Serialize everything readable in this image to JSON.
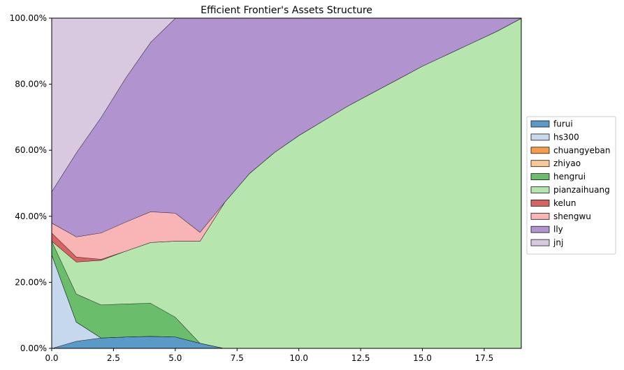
{
  "chart_data": {
    "type": "area",
    "title": "Efficient Frontier's Assets Structure",
    "xlabel": "",
    "ylabel": "",
    "xlim": [
      0,
      19
    ],
    "ylim": [
      0,
      1
    ],
    "grid": true,
    "legend_position": "right",
    "x_ticks": [
      0.0,
      2.5,
      5.0,
      7.5,
      10.0,
      12.5,
      15.0,
      17.5
    ],
    "x_tick_labels": [
      "0.0",
      "2.5",
      "5.0",
      "7.5",
      "10.0",
      "12.5",
      "15.0",
      "17.5"
    ],
    "y_ticks": [
      0,
      0.2,
      0.4,
      0.6,
      0.8,
      1.0
    ],
    "y_tick_labels": [
      "0.00%",
      "20.00%",
      "40.00%",
      "60.00%",
      "80.00%",
      "100.00%"
    ],
    "x": [
      0,
      1,
      2,
      3,
      4,
      5,
      6,
      7,
      8,
      9,
      10,
      11,
      12,
      13,
      14,
      15,
      16,
      17,
      18,
      19
    ],
    "series": [
      {
        "name": "furui",
        "color": "#5b9ac8",
        "values": [
          0.0,
          0.022,
          0.032,
          0.035,
          0.037,
          0.035,
          0.016,
          0.0,
          0.0,
          0.0,
          0.0,
          0.0,
          0.0,
          0.0,
          0.0,
          0.0,
          0.0,
          0.0,
          0.0,
          0.0
        ]
      },
      {
        "name": "hs300",
        "color": "#c5d8ee",
        "values": [
          0.285,
          0.058,
          0.0,
          0.0,
          0.0,
          0.0,
          0.0,
          0.0,
          0.0,
          0.0,
          0.0,
          0.0,
          0.0,
          0.0,
          0.0,
          0.0,
          0.0,
          0.0,
          0.0,
          0.0
        ]
      },
      {
        "name": "chuangyeban",
        "color": "#f89c4b",
        "values": [
          0,
          0,
          0,
          0,
          0,
          0,
          0,
          0,
          0,
          0,
          0,
          0,
          0,
          0,
          0,
          0,
          0,
          0,
          0,
          0
        ]
      },
      {
        "name": "zhiyao",
        "color": "#f9c897",
        "values": [
          0,
          0,
          0,
          0,
          0,
          0,
          0,
          0,
          0,
          0,
          0,
          0,
          0,
          0,
          0,
          0,
          0,
          0,
          0,
          0
        ]
      },
      {
        "name": "hengrui",
        "color": "#6abd6a",
        "values": [
          0.04,
          0.085,
          0.1,
          0.1,
          0.1,
          0.06,
          0.0,
          0.0,
          0.0,
          0.0,
          0.0,
          0.0,
          0.0,
          0.0,
          0.0,
          0.0,
          0.0,
          0.0,
          0.0,
          0.0
        ]
      },
      {
        "name": "pianzaihuang",
        "color": "#b6e6ae",
        "values": [
          0.0,
          0.097,
          0.135,
          0.16,
          0.184,
          0.23,
          0.309,
          0.443,
          0.53,
          0.593,
          0.645,
          0.69,
          0.735,
          0.775,
          0.815,
          0.855,
          0.89,
          0.925,
          0.96,
          1.0
        ]
      },
      {
        "name": "kelun",
        "color": "#d96262",
        "values": [
          0.025,
          0.015,
          0.003,
          0.0,
          0.0,
          0.0,
          0.0,
          0.0,
          0.0,
          0.0,
          0.0,
          0.0,
          0.0,
          0.0,
          0.0,
          0.0,
          0.0,
          0.0,
          0.0,
          0.0
        ]
      },
      {
        "name": "shengwu",
        "color": "#f9b5b5",
        "values": [
          0.03,
          0.061,
          0.08,
          0.088,
          0.093,
          0.085,
          0.027,
          0.0,
          0.0,
          0.0,
          0.0,
          0.0,
          0.0,
          0.0,
          0.0,
          0.0,
          0.0,
          0.0,
          0.0,
          0.0
        ]
      },
      {
        "name": "lly",
        "color": "#b193d0",
        "values": [
          0.095,
          0.255,
          0.35,
          0.437,
          0.513,
          0.59,
          0.648,
          0.557,
          0.47,
          0.407,
          0.355,
          0.31,
          0.265,
          0.225,
          0.185,
          0.145,
          0.11,
          0.075,
          0.04,
          0.0
        ]
      },
      {
        "name": "jnj",
        "color": "#d8c9e1",
        "values": [
          0.525,
          0.407,
          0.3,
          0.18,
          0.073,
          0.0,
          0.0,
          0.0,
          0.0,
          0.0,
          0.0,
          0.0,
          0.0,
          0.0,
          0.0,
          0.0,
          0.0,
          0.0,
          0.0,
          0.0
        ]
      }
    ]
  }
}
